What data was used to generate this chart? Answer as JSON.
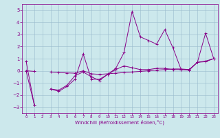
{
  "x": [
    0,
    1,
    2,
    3,
    4,
    5,
    6,
    7,
    8,
    9,
    10,
    11,
    12,
    13,
    14,
    15,
    16,
    17,
    18,
    19,
    20,
    21,
    22,
    23
  ],
  "line1": [
    0.8,
    -2.8,
    null,
    -1.5,
    -1.7,
    -1.3,
    -0.7,
    1.4,
    -0.7,
    -0.7,
    -0.3,
    0.2,
    1.5,
    4.9,
    2.8,
    2.5,
    2.2,
    3.4,
    1.9,
    0.1,
    0.1,
    0.7,
    3.1,
    1.0
  ],
  "line2": [
    0.0,
    -0.05,
    null,
    -0.1,
    -0.15,
    -0.18,
    -0.2,
    0.0,
    -0.25,
    -0.3,
    -0.25,
    -0.2,
    -0.15,
    -0.1,
    -0.05,
    0.0,
    0.05,
    0.1,
    0.15,
    0.15,
    0.1,
    0.7,
    0.75,
    1.0
  ],
  "line3": [
    0.0,
    -2.8,
    null,
    -1.5,
    -1.6,
    -1.2,
    -0.4,
    -0.1,
    -0.5,
    -0.8,
    -0.3,
    0.1,
    0.4,
    0.25,
    0.1,
    0.1,
    0.2,
    0.2,
    0.1,
    0.1,
    0.05,
    0.7,
    0.8,
    1.0
  ],
  "xlabel": "Windchill (Refroidissement éolien,°C)",
  "ylim": [
    -3.5,
    5.5
  ],
  "xlim": [
    -0.5,
    23.5
  ],
  "yticks": [
    -3,
    -2,
    -1,
    0,
    1,
    2,
    3,
    4,
    5
  ],
  "xticks": [
    0,
    1,
    2,
    3,
    4,
    5,
    6,
    7,
    8,
    9,
    10,
    11,
    12,
    13,
    14,
    15,
    16,
    17,
    18,
    19,
    20,
    21,
    22,
    23
  ],
  "line_color": "#880088",
  "bg_color": "#cce8ec",
  "grid_color": "#99bbcc",
  "spine_color": "#880088"
}
